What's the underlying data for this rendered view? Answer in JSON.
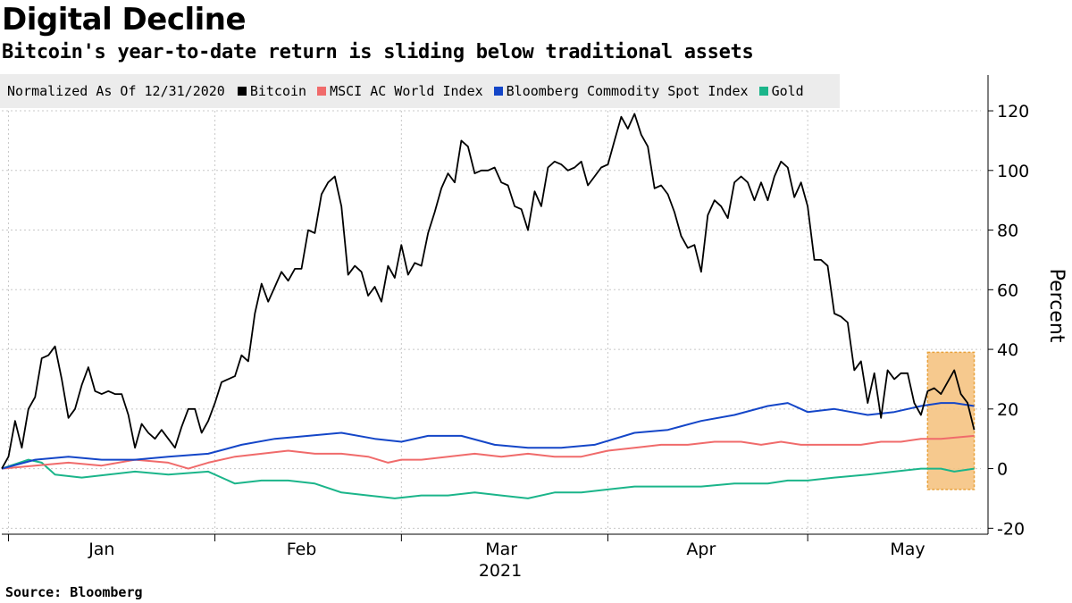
{
  "title": "Digital Decline",
  "subtitle": "Bitcoin's year-to-date return is sliding below traditional assets",
  "source": "Source: Bloomberg",
  "legend": {
    "note": "Normalized As Of 12/31/2020",
    "items": [
      {
        "label": "Bitcoin",
        "color": "#000000"
      },
      {
        "label": "MSCI AC World Index",
        "color": "#f06b6b"
      },
      {
        "label": "Bloomberg Commodity Spot Index",
        "color": "#1446c8"
      },
      {
        "label": "Gold",
        "color": "#1bb58a"
      }
    ]
  },
  "chart_data": {
    "type": "line",
    "ylabel": "Percent",
    "xlabel": "2021",
    "ylim": [
      -22,
      132
    ],
    "yticks": [
      -20,
      0,
      20,
      40,
      60,
      80,
      100,
      120
    ],
    "xlim": [
      "2020-12-31",
      "2021-05-27"
    ],
    "month_labels": [
      {
        "label": "Jan",
        "date": "2021-01-15"
      },
      {
        "label": "Feb",
        "date": "2021-02-14"
      },
      {
        "label": "Mar",
        "date": "2021-03-16"
      },
      {
        "label": "Apr",
        "date": "2021-04-15"
      },
      {
        "label": "May",
        "date": "2021-05-16"
      }
    ],
    "month_gridlines": [
      "2021-01-01",
      "2021-02-01",
      "2021-03-01",
      "2021-04-01",
      "2021-05-01"
    ],
    "highlight": {
      "x_start": "2021-05-19",
      "x_end": "2021-05-26",
      "y_start": -7,
      "y_end": 39,
      "color": "#f5c07a"
    },
    "series": [
      {
        "name": "Bitcoin",
        "color": "#000000",
        "x": [
          "2020-12-31",
          "2021-01-01",
          "2021-01-02",
          "2021-01-03",
          "2021-01-04",
          "2021-01-05",
          "2021-01-06",
          "2021-01-07",
          "2021-01-08",
          "2021-01-09",
          "2021-01-10",
          "2021-01-11",
          "2021-01-12",
          "2021-01-13",
          "2021-01-14",
          "2021-01-15",
          "2021-01-16",
          "2021-01-17",
          "2021-01-18",
          "2021-01-19",
          "2021-01-20",
          "2021-01-21",
          "2021-01-22",
          "2021-01-23",
          "2021-01-24",
          "2021-01-25",
          "2021-01-26",
          "2021-01-27",
          "2021-01-28",
          "2021-01-29",
          "2021-01-30",
          "2021-01-31",
          "2021-02-01",
          "2021-02-02",
          "2021-02-03",
          "2021-02-04",
          "2021-02-05",
          "2021-02-06",
          "2021-02-07",
          "2021-02-08",
          "2021-02-09",
          "2021-02-10",
          "2021-02-11",
          "2021-02-12",
          "2021-02-13",
          "2021-02-14",
          "2021-02-15",
          "2021-02-16",
          "2021-02-17",
          "2021-02-18",
          "2021-02-19",
          "2021-02-20",
          "2021-02-21",
          "2021-02-22",
          "2021-02-23",
          "2021-02-24",
          "2021-02-25",
          "2021-02-26",
          "2021-02-27",
          "2021-02-28",
          "2021-03-01",
          "2021-03-02",
          "2021-03-03",
          "2021-03-04",
          "2021-03-05",
          "2021-03-06",
          "2021-03-07",
          "2021-03-08",
          "2021-03-09",
          "2021-03-10",
          "2021-03-11",
          "2021-03-12",
          "2021-03-13",
          "2021-03-14",
          "2021-03-15",
          "2021-03-16",
          "2021-03-17",
          "2021-03-18",
          "2021-03-19",
          "2021-03-20",
          "2021-03-21",
          "2021-03-22",
          "2021-03-23",
          "2021-03-24",
          "2021-03-25",
          "2021-03-26",
          "2021-03-27",
          "2021-03-28",
          "2021-03-29",
          "2021-03-30",
          "2021-03-31",
          "2021-04-01",
          "2021-04-02",
          "2021-04-03",
          "2021-04-04",
          "2021-04-05",
          "2021-04-06",
          "2021-04-07",
          "2021-04-08",
          "2021-04-09",
          "2021-04-10",
          "2021-04-11",
          "2021-04-12",
          "2021-04-13",
          "2021-04-14",
          "2021-04-15",
          "2021-04-16",
          "2021-04-17",
          "2021-04-18",
          "2021-04-19",
          "2021-04-20",
          "2021-04-21",
          "2021-04-22",
          "2021-04-23",
          "2021-04-24",
          "2021-04-25",
          "2021-04-26",
          "2021-04-27",
          "2021-04-28",
          "2021-04-29",
          "2021-04-30",
          "2021-05-01",
          "2021-05-02",
          "2021-05-03",
          "2021-05-04",
          "2021-05-05",
          "2021-05-06",
          "2021-05-07",
          "2021-05-08",
          "2021-05-09",
          "2021-05-10",
          "2021-05-11",
          "2021-05-12",
          "2021-05-13",
          "2021-05-14",
          "2021-05-15",
          "2021-05-16",
          "2021-05-17",
          "2021-05-18",
          "2021-05-19",
          "2021-05-20",
          "2021-05-21",
          "2021-05-22",
          "2021-05-23",
          "2021-05-24",
          "2021-05-25",
          "2021-05-26"
        ],
        "y": [
          0,
          4,
          16,
          7,
          20,
          24,
          37,
          38,
          41,
          30,
          17,
          20,
          28,
          34,
          26,
          25,
          26,
          25,
          25,
          18,
          7,
          15,
          12,
          10,
          13,
          10,
          7,
          14,
          20,
          20,
          12,
          16,
          22,
          29,
          30,
          31,
          38,
          36,
          52,
          62,
          56,
          61,
          66,
          63,
          67,
          67,
          80,
          79,
          92,
          96,
          98,
          88,
          65,
          68,
          66,
          58,
          61,
          56,
          68,
          64,
          75,
          65,
          69,
          68,
          79,
          86,
          94,
          99,
          96,
          110,
          108,
          99,
          100,
          100,
          101,
          96,
          95,
          88,
          87,
          80,
          93,
          88,
          101,
          103,
          102,
          100,
          101,
          103,
          95,
          98,
          101,
          102,
          110,
          118,
          114,
          119,
          112,
          108,
          94,
          95,
          92,
          86,
          78,
          74,
          75,
          66,
          85,
          90,
          88,
          84,
          96,
          98,
          96,
          90,
          96,
          90,
          98,
          103,
          101,
          91,
          96,
          88,
          70,
          70,
          68,
          52,
          51,
          49,
          33,
          36,
          22,
          32,
          17,
          33,
          30,
          32,
          32,
          22,
          18,
          26,
          27,
          25,
          29,
          33,
          25,
          22,
          13
        ]
      },
      {
        "name": "MSCI AC World Index",
        "color": "#f06b6b",
        "x": [
          "2020-12-31",
          "2021-01-05",
          "2021-01-10",
          "2021-01-15",
          "2021-01-20",
          "2021-01-25",
          "2021-01-28",
          "2021-01-31",
          "2021-02-04",
          "2021-02-08",
          "2021-02-12",
          "2021-02-16",
          "2021-02-20",
          "2021-02-24",
          "2021-02-27",
          "2021-03-01",
          "2021-03-04",
          "2021-03-08",
          "2021-03-12",
          "2021-03-16",
          "2021-03-20",
          "2021-03-24",
          "2021-03-28",
          "2021-04-01",
          "2021-04-05",
          "2021-04-09",
          "2021-04-13",
          "2021-04-17",
          "2021-04-21",
          "2021-04-24",
          "2021-04-27",
          "2021-04-30",
          "2021-05-03",
          "2021-05-06",
          "2021-05-09",
          "2021-05-12",
          "2021-05-15",
          "2021-05-18",
          "2021-05-21",
          "2021-05-26"
        ],
        "y": [
          0,
          1,
          2,
          1,
          3,
          2,
          0,
          2,
          4,
          5,
          6,
          5,
          5,
          4,
          2,
          3,
          3,
          4,
          5,
          4,
          5,
          4,
          4,
          6,
          7,
          8,
          8,
          9,
          9,
          8,
          9,
          8,
          8,
          8,
          8,
          9,
          9,
          10,
          10,
          11
        ]
      },
      {
        "name": "Bloomberg Commodity Spot Index",
        "color": "#1446c8",
        "x": [
          "2020-12-31",
          "2021-01-05",
          "2021-01-10",
          "2021-01-15",
          "2021-01-20",
          "2021-01-25",
          "2021-01-31",
          "2021-02-05",
          "2021-02-10",
          "2021-02-15",
          "2021-02-20",
          "2021-02-25",
          "2021-03-01",
          "2021-03-05",
          "2021-03-10",
          "2021-03-15",
          "2021-03-20",
          "2021-03-25",
          "2021-03-30",
          "2021-04-05",
          "2021-04-10",
          "2021-04-15",
          "2021-04-20",
          "2021-04-25",
          "2021-04-28",
          "2021-05-01",
          "2021-05-05",
          "2021-05-10",
          "2021-05-14",
          "2021-05-18",
          "2021-05-21",
          "2021-05-23",
          "2021-05-26"
        ],
        "y": [
          0,
          3,
          4,
          3,
          3,
          4,
          5,
          8,
          10,
          11,
          12,
          10,
          9,
          11,
          11,
          8,
          7,
          7,
          8,
          12,
          13,
          16,
          18,
          21,
          22,
          19,
          20,
          18,
          19,
          21,
          22,
          22,
          21
        ]
      },
      {
        "name": "Gold",
        "color": "#1bb58a",
        "x": [
          "2020-12-31",
          "2021-01-04",
          "2021-01-06",
          "2021-01-08",
          "2021-01-12",
          "2021-01-16",
          "2021-01-20",
          "2021-01-25",
          "2021-01-31",
          "2021-02-04",
          "2021-02-08",
          "2021-02-12",
          "2021-02-16",
          "2021-02-20",
          "2021-02-24",
          "2021-02-28",
          "2021-03-04",
          "2021-03-08",
          "2021-03-12",
          "2021-03-16",
          "2021-03-20",
          "2021-03-24",
          "2021-03-28",
          "2021-04-01",
          "2021-04-05",
          "2021-04-10",
          "2021-04-15",
          "2021-04-20",
          "2021-04-25",
          "2021-04-28",
          "2021-05-01",
          "2021-05-05",
          "2021-05-10",
          "2021-05-14",
          "2021-05-18",
          "2021-05-21",
          "2021-05-23",
          "2021-05-26"
        ],
        "y": [
          0,
          3,
          2,
          -2,
          -3,
          -2,
          -1,
          -2,
          -1,
          -5,
          -4,
          -4,
          -5,
          -8,
          -9,
          -10,
          -9,
          -9,
          -8,
          -9,
          -10,
          -8,
          -8,
          -7,
          -6,
          -6,
          -6,
          -5,
          -5,
          -4,
          -4,
          -3,
          -2,
          -1,
          0,
          0,
          -1,
          0
        ]
      }
    ]
  }
}
